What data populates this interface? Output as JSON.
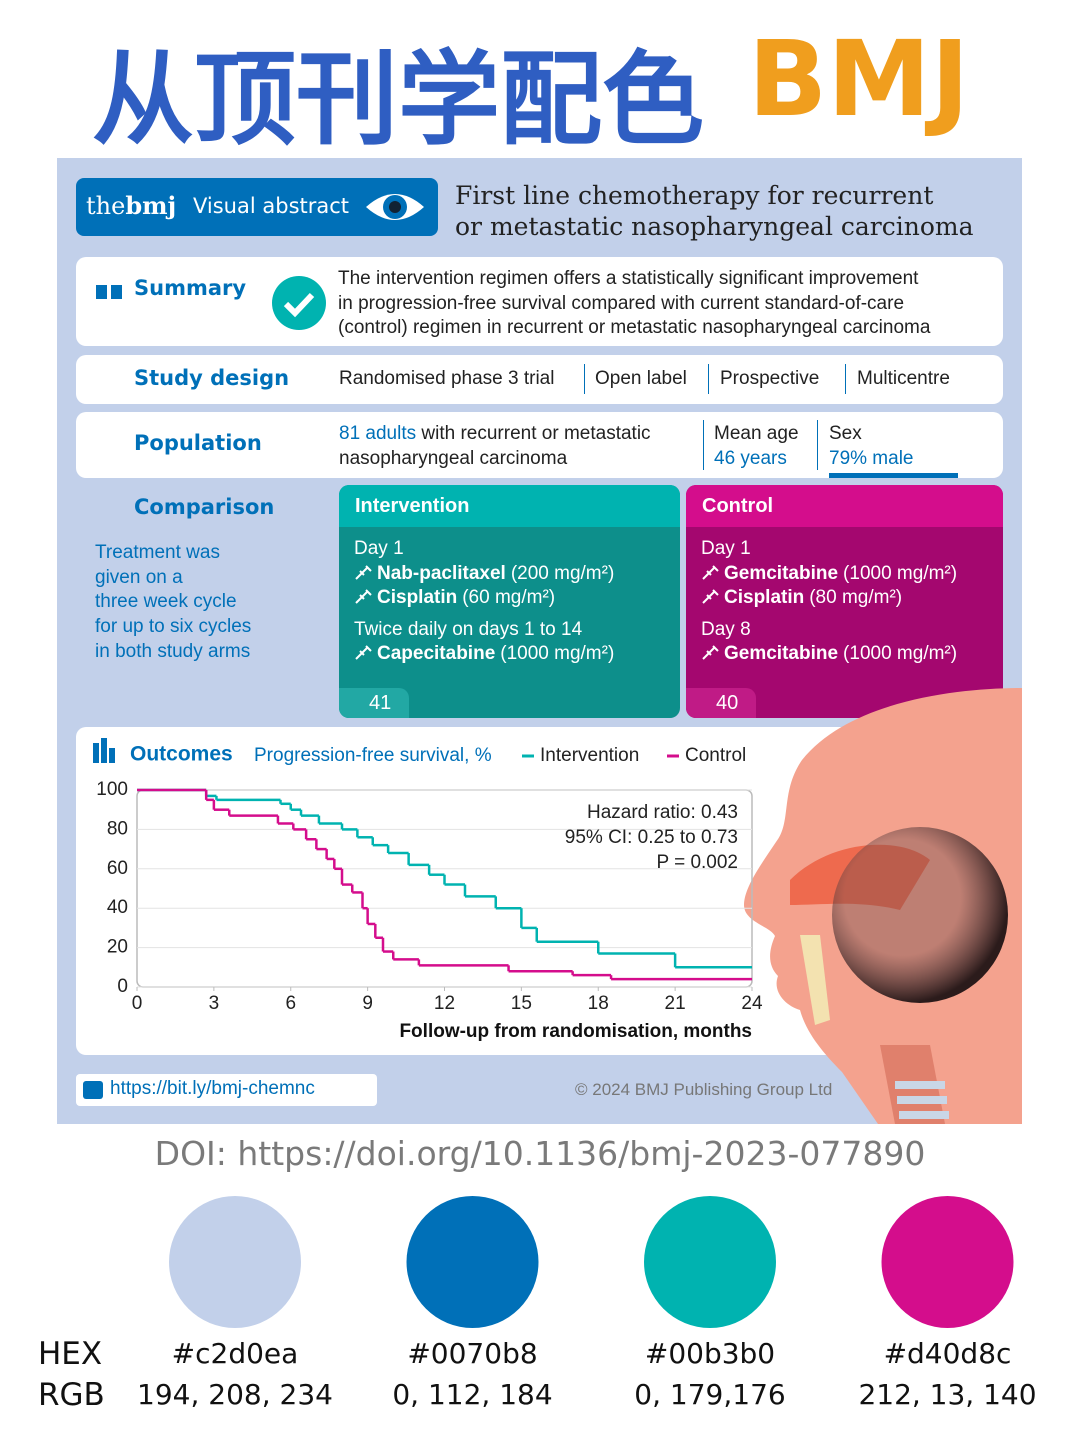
{
  "header": {
    "title": "从顶刊学配色",
    "brand": "BMJ"
  },
  "abstract": {
    "logo_the": "the",
    "logo_bmj": "bmj",
    "badge": "Visual abstract",
    "title_lines": [
      "First line chemotherapy for recurrent",
      "or metastatic nasopharyngeal carcinoma"
    ]
  },
  "summary": {
    "label": "Summary",
    "text_lines": [
      "The intervention regimen offers a statistically significant improvement",
      "in progression-free survival compared with current standard-of-care",
      "(control) regimen in recurrent or metastatic nasopharyngeal carcinoma"
    ]
  },
  "study_design": {
    "label": "Study design",
    "items": [
      "Randomised phase 3 trial",
      "Open label",
      "Prospective",
      "Multicentre"
    ]
  },
  "population": {
    "label": "Population",
    "count": "81 adults",
    "description_lines": [
      "with recurrent or metastatic",
      "nasopharyngeal carcinoma"
    ],
    "age_label": "Mean age",
    "age_value": "46 years",
    "sex_label": "Sex",
    "sex_value": "79% male"
  },
  "comparison": {
    "label": "Comparison",
    "note_lines": [
      "Treatment was",
      "given on a",
      "three week cycle",
      "for up to six cycles",
      "in both study arms"
    ],
    "arms": [
      {
        "name": "Intervention",
        "color": "#00b3b0",
        "n": 41,
        "lines": [
          {
            "text": "Day 1"
          },
          {
            "drug": "Nab-paclitaxel",
            "dose": "(200 mg/m²)"
          },
          {
            "drug": "Cisplatin",
            "dose": "(60 mg/m²)"
          },
          {
            "text": "Twice daily on days 1 to 14"
          },
          {
            "drug": "Capecitabine",
            "dose": "(1000 mg/m²)"
          }
        ]
      },
      {
        "name": "Control",
        "color": "#d40d8c",
        "n": 40,
        "lines": [
          {
            "text": "Day 1"
          },
          {
            "drug": "Gemcitabine",
            "dose": "(1000 mg/m²)"
          },
          {
            "drug": "Cisplatin",
            "dose": "(80 mg/m²)"
          },
          {
            "text": "Day 8"
          },
          {
            "drug": "Gemcitabine",
            "dose": "(1000 mg/m²)"
          }
        ]
      }
    ]
  },
  "chart_data": {
    "type": "line",
    "step": true,
    "title": "Outcomes",
    "subtitle": "Progression-free survival, %",
    "x_label": "Follow-up from randomisation, months",
    "xlim": [
      0,
      24
    ],
    "xticks": [
      0,
      3,
      6,
      9,
      12,
      15,
      18,
      21,
      24
    ],
    "ylim": [
      0,
      100
    ],
    "yticks": [
      0,
      20,
      40,
      60,
      80,
      100
    ],
    "grid": true,
    "annotations": [
      "Hazard ratio: 0.43",
      "95% CI: 0.25 to 0.73",
      "P = 0.002"
    ],
    "series": [
      {
        "name": "Intervention",
        "color": "#00b3b0",
        "x": [
          0,
          2.7,
          3.1,
          5.6,
          6.0,
          6.4,
          7.1,
          8.0,
          8.6,
          9.2,
          9.8,
          10.6,
          11.4,
          12.0,
          12.8,
          14.0,
          15.0,
          15.6,
          18.0,
          21.0
        ],
        "values": [
          100,
          97,
          95,
          93,
          90,
          87,
          83,
          80,
          76,
          72,
          68,
          62,
          57,
          52,
          46,
          40,
          30,
          23,
          17,
          10
        ]
      },
      {
        "name": "Control",
        "color": "#d40d8c",
        "x": [
          0,
          2.7,
          3.0,
          3.6,
          5.5,
          6.1,
          6.6,
          7.0,
          7.4,
          7.7,
          8.0,
          8.4,
          8.8,
          9.0,
          9.3,
          9.6,
          10.0,
          11.0,
          14.5,
          17.0,
          18.5
        ],
        "values": [
          100,
          95,
          90,
          87,
          83,
          80,
          75,
          70,
          65,
          60,
          52,
          48,
          40,
          32,
          25,
          18,
          14,
          11,
          8,
          6,
          4
        ]
      }
    ]
  },
  "footer": {
    "url": "https://bit.ly/bmj-chemnc",
    "copyright": "© 2024 BMJ Publishing Group Ltd",
    "doi": "DOI: https://doi.org/10.1136/bmj-2023-077890"
  },
  "palette": {
    "hex_label": "HEX",
    "rgb_label": "RGB",
    "colors": [
      {
        "hex": "#c2d0ea",
        "rgb": "194, 208, 234"
      },
      {
        "hex": "#0070b8",
        "rgb": "0, 112, 184"
      },
      {
        "hex": "#00b3b0",
        "rgb": "0, 179,176"
      },
      {
        "hex": "#d40d8c",
        "rgb": "212, 13, 140"
      }
    ]
  }
}
